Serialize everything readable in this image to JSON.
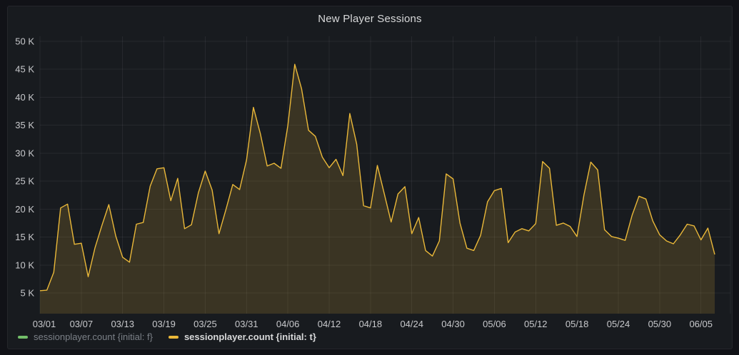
{
  "panel": {
    "title": "New Player Sessions"
  },
  "colors": {
    "background": "#111217",
    "panel_background": "#181b1f",
    "panel_border": "#25262b",
    "grid": "rgba(204,204,220,0.08)",
    "tick_text": "#c8c9cc",
    "series_f_green": "#73bf69",
    "series_t_yellow": "#eab839",
    "fill_yellow": "rgba(234,184,57,0.16)"
  },
  "legend": {
    "items": [
      {
        "label": "sessionplayer.count {initial: f}",
        "color": "#73bf69",
        "state": "off"
      },
      {
        "label": "sessionplayer.count {initial: t}",
        "color": "#eab839",
        "state": "on"
      }
    ]
  },
  "chart_data": {
    "type": "line",
    "title": "New Player Sessions",
    "xlabel": "",
    "ylabel": "",
    "unit": "K",
    "ylim": [
      1.3,
      50
    ],
    "yticks": [
      5,
      10,
      15,
      20,
      25,
      30,
      35,
      40,
      45,
      50
    ],
    "ytick_labels": [
      "5 K",
      "10 K",
      "15 K",
      "20 K",
      "25 K",
      "30 K",
      "35 K",
      "40 K",
      "45 K",
      "50 K"
    ],
    "xtick_every": 6,
    "grid": true,
    "legend_position": "bottom-left",
    "x": [
      "03/01",
      "03/02",
      "03/03",
      "03/04",
      "03/05",
      "03/06",
      "03/07",
      "03/08",
      "03/09",
      "03/10",
      "03/11",
      "03/12",
      "03/13",
      "03/14",
      "03/15",
      "03/16",
      "03/17",
      "03/18",
      "03/19",
      "03/20",
      "03/21",
      "03/22",
      "03/23",
      "03/24",
      "03/25",
      "03/26",
      "03/27",
      "03/28",
      "03/29",
      "03/30",
      "03/31",
      "04/01",
      "04/02",
      "04/03",
      "04/04",
      "04/05",
      "04/06",
      "04/07",
      "04/08",
      "04/09",
      "04/10",
      "04/11",
      "04/12",
      "04/13",
      "04/14",
      "04/15",
      "04/16",
      "04/17",
      "04/18",
      "04/19",
      "04/20",
      "04/21",
      "04/22",
      "04/23",
      "04/24",
      "04/25",
      "04/26",
      "04/27",
      "04/28",
      "04/29",
      "04/30",
      "05/01",
      "05/02",
      "05/03",
      "05/04",
      "05/05",
      "05/06",
      "05/07",
      "05/08",
      "05/09",
      "05/10",
      "05/11",
      "05/12",
      "05/13",
      "05/14",
      "05/15",
      "05/16",
      "05/17",
      "05/18",
      "05/19",
      "05/20",
      "05/21",
      "05/22",
      "05/23",
      "05/24",
      "05/25",
      "05/26",
      "05/27",
      "05/28",
      "05/29",
      "05/30",
      "05/31",
      "06/01",
      "06/02",
      "06/03",
      "06/04",
      "06/05",
      "06/06",
      "06/07"
    ],
    "series": [
      {
        "name": "sessionplayer.count {initial: f}",
        "color": "#73bf69",
        "hidden": true,
        "values": []
      },
      {
        "name": "sessionplayer.count {initial: t}",
        "color": "#eab839",
        "hidden": false,
        "values": [
          5.4,
          5.5,
          8.7,
          20.2,
          20.9,
          13.7,
          13.9,
          7.9,
          13.1,
          17.1,
          20.8,
          15.2,
          11.4,
          10.5,
          17.3,
          17.6,
          24.1,
          27.2,
          27.4,
          21.5,
          25.5,
          16.5,
          17.2,
          22.9,
          26.8,
          23.4,
          15.6,
          19.9,
          24.4,
          23.5,
          28.8,
          38.2,
          33.5,
          27.7,
          28.2,
          27.3,
          34.9,
          45.9,
          41.5,
          34.1,
          33.0,
          29.3,
          27.4,
          28.9,
          26.0,
          37.1,
          31.6,
          20.6,
          20.2,
          27.8,
          22.8,
          17.7,
          22.7,
          24.0,
          15.6,
          18.5,
          12.6,
          11.6,
          14.3,
          26.3,
          25.4,
          17.5,
          13.0,
          12.6,
          15.3,
          21.3,
          23.3,
          23.7,
          14.0,
          15.9,
          16.5,
          16.1,
          17.4,
          28.5,
          27.3,
          17.1,
          17.5,
          16.9,
          15.1,
          22.5,
          28.4,
          27.0,
          16.3,
          15.1,
          14.8,
          14.4,
          18.9,
          22.3,
          21.8,
          17.9,
          15.4,
          14.3,
          13.8,
          15.4,
          17.3,
          17.0,
          14.5,
          16.6,
          11.9
        ]
      }
    ]
  }
}
